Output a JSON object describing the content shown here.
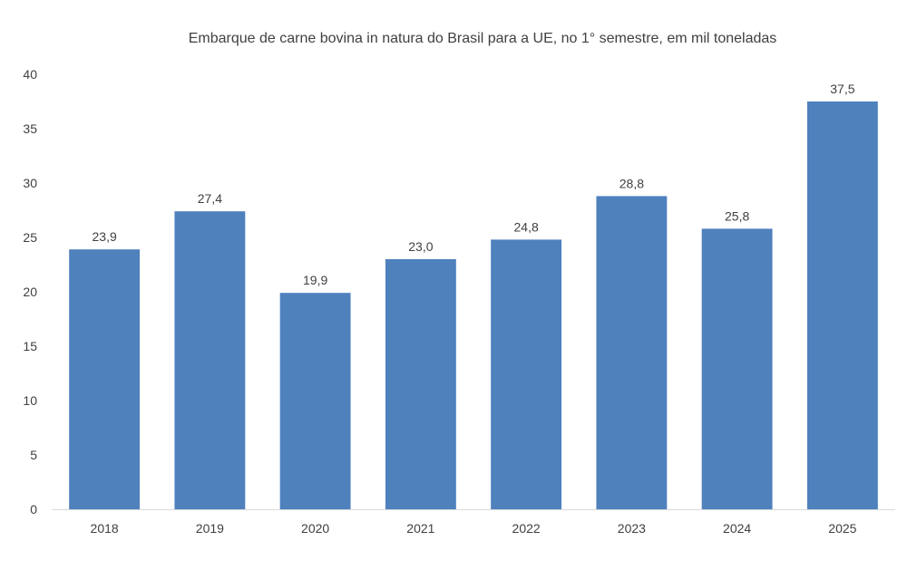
{
  "chart_data": {
    "type": "bar",
    "title": "Embarque de carne bovina in natura do Brasil para a UE, no 1° semestre, em mil toneladas",
    "xlabel": "",
    "ylabel": "",
    "categories": [
      "2018",
      "2019",
      "2020",
      "2021",
      "2022",
      "2023",
      "2024",
      "2025"
    ],
    "values": [
      23.9,
      27.4,
      19.9,
      23.0,
      24.8,
      28.8,
      25.8,
      37.5
    ],
    "data_labels": [
      "23,9",
      "27,4",
      "19,9",
      "23,0",
      "24,8",
      "28,8",
      "25,8",
      "37,5"
    ],
    "ylim": [
      0,
      40
    ],
    "yticks": [
      0,
      5,
      10,
      15,
      20,
      25,
      30,
      35,
      40
    ],
    "grid": false,
    "legend": "none",
    "colors": {
      "bar": "#4F81BD",
      "text": "#404040",
      "axis": "#D9D9D9"
    }
  }
}
